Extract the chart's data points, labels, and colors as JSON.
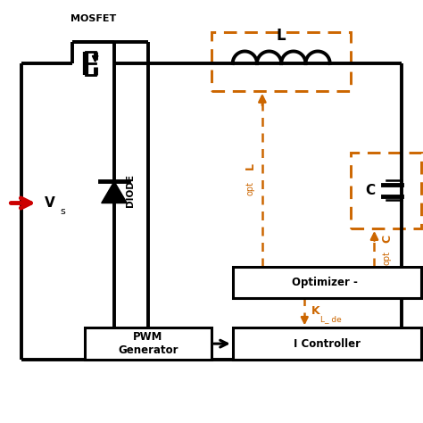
{
  "bg_color": "#ffffff",
  "line_color": "#000000",
  "orange_color": "#CC6600",
  "red_color": "#CC0000",
  "line_width": 2.8,
  "orange_lw": 1.8,
  "mosfet_label": "MOSFET",
  "diode_label": "DIODE",
  "L_label": "L",
  "C_label": "C",
  "Vs_label": "V",
  "Vs_sub": "s",
  "Lopt_label": "L",
  "Lopt_sub": "opt",
  "Copt_label": "C",
  "Copt_sub": "opt",
  "Kl_label": "K",
  "Kl_sub": "L_ de",
  "optimizer_label": "Optimizer - ",
  "pwm_label": "PWM\nGenerator",
  "icontrol_label": "I Controller",
  "xlim": [
    0,
    10
  ],
  "ylim": [
    0,
    10
  ]
}
